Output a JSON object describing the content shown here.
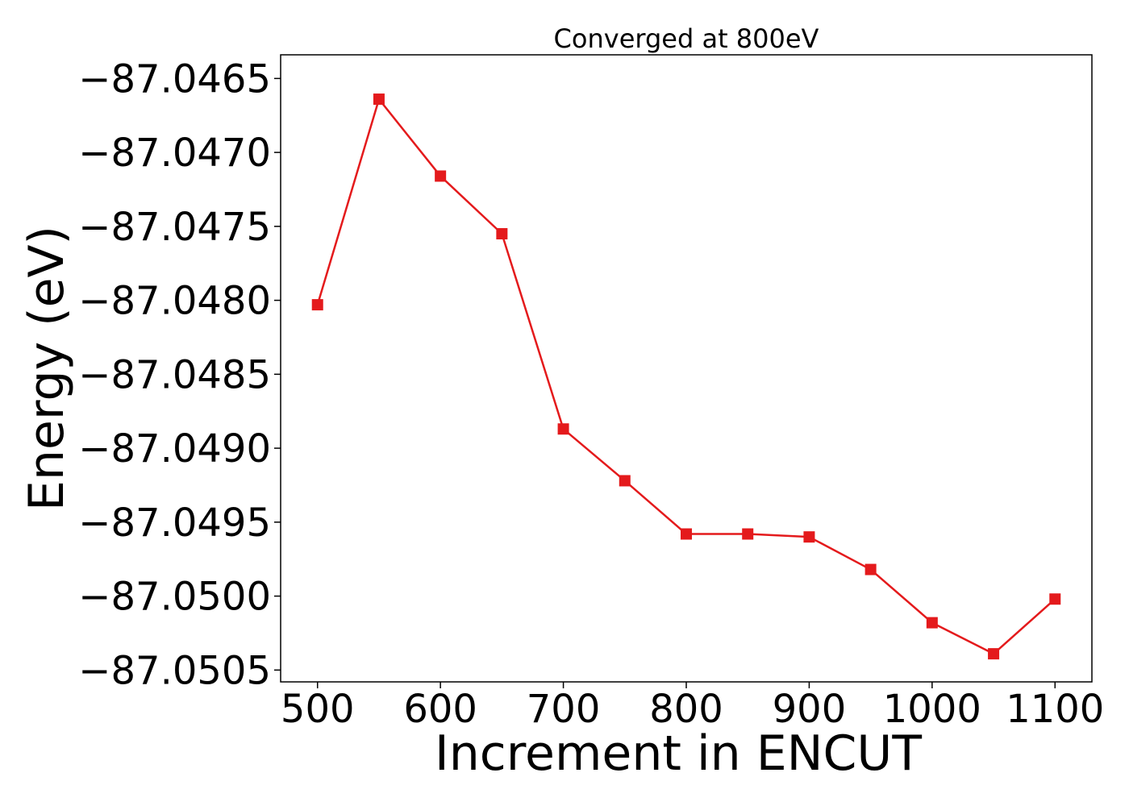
{
  "chart_data": {
    "type": "line",
    "title": "Converged at 800eV",
    "xlabel": "Increment in ENCUT",
    "ylabel": "Energy (eV)",
    "xlim": [
      470,
      1130
    ],
    "ylim": [
      -87.05058,
      -87.04634
    ],
    "x_ticks": [
      500,
      600,
      700,
      800,
      900,
      1000,
      1100
    ],
    "x_tick_labels": [
      "500",
      "600",
      "700",
      "800",
      "900",
      "1000",
      "1100"
    ],
    "y_ticks": [
      -87.0465,
      -87.047,
      -87.0475,
      -87.048,
      -87.0485,
      -87.049,
      -87.0495,
      -87.05,
      -87.0505
    ],
    "y_tick_labels": [
      "−87.0465",
      "−87.0470",
      "−87.0475",
      "−87.0480",
      "−87.0485",
      "−87.0490",
      "−87.0495",
      "−87.0500",
      "−87.0505"
    ],
    "grid": false,
    "series": [
      {
        "marker": "square",
        "color": "#e41a1c",
        "x": [
          500,
          550,
          600,
          650,
          700,
          750,
          800,
          850,
          900,
          950,
          1000,
          1050,
          1100
        ],
        "y": [
          -87.04803,
          -87.04664,
          -87.04716,
          -87.04755,
          -87.04887,
          -87.04922,
          -87.04958,
          -87.04958,
          -87.0496,
          -87.04982,
          -87.05018,
          -87.05039,
          -87.05002
        ]
      }
    ]
  }
}
